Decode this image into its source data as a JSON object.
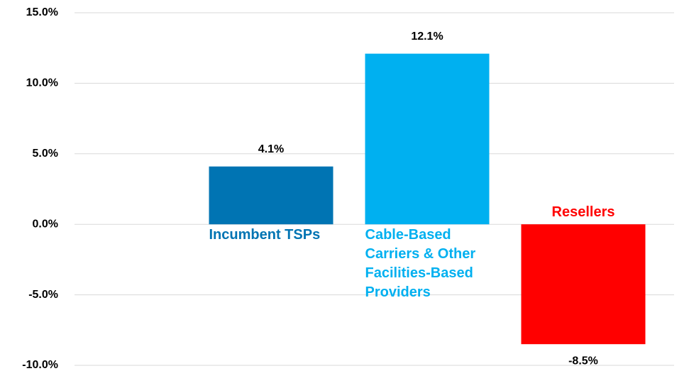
{
  "chart_data": {
    "type": "bar",
    "categories": [
      "Incumbent TSPs",
      "Cable-Based Carriers & Other Facilities-Based Providers",
      "Resellers"
    ],
    "values": [
      4.1,
      12.1,
      -8.5
    ],
    "value_labels": [
      "4.1%",
      "12.1%",
      "-8.5%"
    ],
    "colors": [
      "#0074b3",
      "#00b0f0",
      "#ff0000"
    ],
    "ylim": [
      -10,
      15
    ],
    "yticks": [
      {
        "value": -10,
        "label": "-10.0%"
      },
      {
        "value": -5,
        "label": "-5.0%"
      },
      {
        "value": 0,
        "label": "0.0%"
      },
      {
        "value": 5,
        "label": "5.0%"
      },
      {
        "value": 10,
        "label": "10.0%"
      },
      {
        "value": 15,
        "label": "15.0%"
      }
    ],
    "grid": true
  }
}
